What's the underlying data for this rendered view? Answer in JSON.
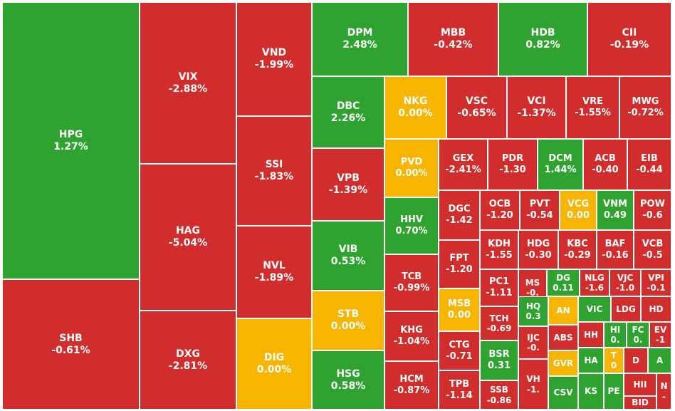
{
  "colors": {
    "up": "#2fa32f",
    "down": "#d12d2d",
    "flat": "#f7b500",
    "border": "#ffffff"
  },
  "chart_data": {
    "type": "treemap",
    "title": "",
    "tiles": [
      {
        "ticker": "HPG",
        "change": "1.27%",
        "status": "up"
      },
      {
        "ticker": "SHB",
        "change": "-0.61%",
        "status": "down"
      },
      {
        "ticker": "VIX",
        "change": "-2.88%",
        "status": "down"
      },
      {
        "ticker": "HAG",
        "change": "-5.04%",
        "status": "down"
      },
      {
        "ticker": "DXG",
        "change": "-2.81%",
        "status": "down"
      },
      {
        "ticker": "VND",
        "change": "-1.99%",
        "status": "down"
      },
      {
        "ticker": "SSI",
        "change": "-1.83%",
        "status": "down"
      },
      {
        "ticker": "NVL",
        "change": "-1.89%",
        "status": "down"
      },
      {
        "ticker": "DIG",
        "change": "0.00%",
        "status": "flat"
      },
      {
        "ticker": "DPM",
        "change": "2.48%",
        "status": "up"
      },
      {
        "ticker": "MBB",
        "change": "-0.42%",
        "status": "down"
      },
      {
        "ticker": "HDB",
        "change": "0.82%",
        "status": "up"
      },
      {
        "ticker": "CII",
        "change": "-0.19%",
        "status": "down"
      },
      {
        "ticker": "DBC",
        "change": "2.26%",
        "status": "up"
      },
      {
        "ticker": "VPB",
        "change": "-1.39%",
        "status": "down"
      },
      {
        "ticker": "VIB",
        "change": "0.53%",
        "status": "up"
      },
      {
        "ticker": "STB",
        "change": "0.00%",
        "status": "flat"
      },
      {
        "ticker": "HSG",
        "change": "0.58%",
        "status": "up"
      },
      {
        "ticker": "NKG",
        "change": "0.00%",
        "status": "flat"
      },
      {
        "ticker": "VSC",
        "change": "-0.65%",
        "status": "down"
      },
      {
        "ticker": "VCI",
        "change": "-1.37%",
        "status": "down"
      },
      {
        "ticker": "VRE",
        "change": "-1.55%",
        "status": "down"
      },
      {
        "ticker": "MWG",
        "change": "-0.72%",
        "status": "down"
      },
      {
        "ticker": "PVD",
        "change": "0.00%",
        "status": "flat"
      },
      {
        "ticker": "HHV",
        "change": "0.70%",
        "status": "up"
      },
      {
        "ticker": "TCB",
        "change": "-0.99%",
        "status": "down"
      },
      {
        "ticker": "KHG",
        "change": "-1.04%",
        "status": "down"
      },
      {
        "ticker": "HCM",
        "change": "-0.87%",
        "status": "down"
      },
      {
        "ticker": "GEX",
        "change": "-2.41%",
        "status": "down"
      },
      {
        "ticker": "PDR",
        "change": "-1.30",
        "status": "down"
      },
      {
        "ticker": "DCM",
        "change": "1.44%",
        "status": "up"
      },
      {
        "ticker": "ACB",
        "change": "-0.40",
        "status": "down"
      },
      {
        "ticker": "EIB",
        "change": "-0.44",
        "status": "down"
      },
      {
        "ticker": "DGC",
        "change": "-1.42",
        "status": "down"
      },
      {
        "ticker": "FPT",
        "change": "-1.20",
        "status": "down"
      },
      {
        "ticker": "MSB",
        "change": "0.00",
        "status": "flat"
      },
      {
        "ticker": "CTG",
        "change": "-0.71",
        "status": "down"
      },
      {
        "ticker": "TPB",
        "change": "-1.14",
        "status": "down"
      },
      {
        "ticker": "OCB",
        "change": "-1.20",
        "status": "down"
      },
      {
        "ticker": "PVT",
        "change": "-0.54",
        "status": "down"
      },
      {
        "ticker": "VCG",
        "change": "0.00",
        "status": "flat"
      },
      {
        "ticker": "VNM",
        "change": "0.49",
        "status": "up"
      },
      {
        "ticker": "POW",
        "change": "-0.6",
        "status": "down"
      },
      {
        "ticker": "KDH",
        "change": "-1.55",
        "status": "down"
      },
      {
        "ticker": "HDG",
        "change": "-0.30",
        "status": "down"
      },
      {
        "ticker": "KBC",
        "change": "-0.29",
        "status": "down"
      },
      {
        "ticker": "BAF",
        "change": "-0.16",
        "status": "down"
      },
      {
        "ticker": "VCB",
        "change": "-0.5",
        "status": "down"
      },
      {
        "ticker": "PC1",
        "change": "-1.11",
        "status": "down"
      },
      {
        "ticker": "MS",
        "change": "-0.",
        "status": "down"
      },
      {
        "ticker": "DG",
        "change": "0.11",
        "status": "up"
      },
      {
        "ticker": "NLG",
        "change": "-1.6",
        "status": "down"
      },
      {
        "ticker": "VJC",
        "change": "-1.0",
        "status": "down"
      },
      {
        "ticker": "VPI",
        "change": "-0.1",
        "status": "down"
      },
      {
        "ticker": "HQ",
        "change": "0.3",
        "status": "up"
      },
      {
        "ticker": "AN",
        "change": "",
        "status": "flat"
      },
      {
        "ticker": "VIC",
        "change": "",
        "status": "up"
      },
      {
        "ticker": "LDG",
        "change": "",
        "status": "down"
      },
      {
        "ticker": "HD",
        "change": "",
        "status": "down"
      },
      {
        "ticker": "TCH",
        "change": "-0.69",
        "status": "down"
      },
      {
        "ticker": "ABS",
        "change": "",
        "status": "down"
      },
      {
        "ticker": "HH",
        "change": "",
        "status": "down"
      },
      {
        "ticker": "HI",
        "change": "0.",
        "status": "up"
      },
      {
        "ticker": "FC",
        "change": "0.",
        "status": "up"
      },
      {
        "ticker": "EV",
        "change": "-1",
        "status": "down"
      },
      {
        "ticker": "BSR",
        "change": "0.31",
        "status": "up"
      },
      {
        "ticker": "IJC",
        "change": "-0.",
        "status": "down"
      },
      {
        "ticker": "GVR",
        "change": "",
        "status": "flat"
      },
      {
        "ticker": "HA",
        "change": "",
        "status": "up"
      },
      {
        "ticker": "T",
        "change": "0",
        "status": "flat"
      },
      {
        "ticker": "D",
        "change": "",
        "status": "down"
      },
      {
        "ticker": "A",
        "change": "",
        "status": "up"
      },
      {
        "ticker": "SSB",
        "change": "-0.86",
        "status": "down"
      },
      {
        "ticker": "VH",
        "change": "-1.",
        "status": "down"
      },
      {
        "ticker": "CSV",
        "change": "",
        "status": "up"
      },
      {
        "ticker": "KS",
        "change": "",
        "status": "up"
      },
      {
        "ticker": "PE",
        "change": "",
        "status": "up"
      },
      {
        "ticker": "HII",
        "change": "",
        "status": "down"
      },
      {
        "ticker": "N",
        "change": "-",
        "status": "down"
      },
      {
        "ticker": "BID",
        "change": "",
        "status": "down"
      }
    ]
  }
}
